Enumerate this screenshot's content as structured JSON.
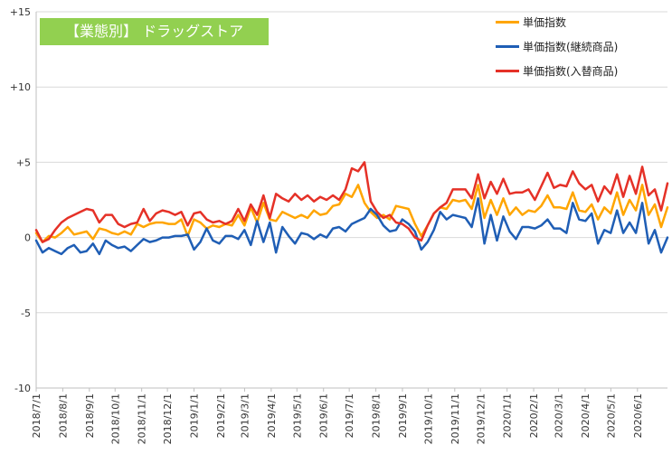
{
  "chart_data": {
    "type": "line",
    "title": "【業態別】 ドラッグストア",
    "ylim": [
      -10,
      15
    ],
    "yticks": [
      "-10",
      "-5",
      "0",
      "+5",
      "+10",
      "+15"
    ],
    "x_labels": [
      "2018/7/1",
      "2018/8/1",
      "2018/9/1",
      "2018/10/1",
      "2018/11/1",
      "2018/12/1",
      "2019/1/1",
      "2019/2/1",
      "2019/3/1",
      "2019/4/1",
      "2019/5/1",
      "2019/6/1",
      "2019/7/1",
      "2019/8/1",
      "2019/9/1",
      "2019/10/1",
      "2019/11/1",
      "2019/12/1",
      "2020/1/1",
      "2020/2/1",
      "2020/3/1",
      "2020/4/1",
      "2020/5/1",
      "2020/6/1"
    ],
    "x_start": "2018/7/1",
    "x_end": "2020/7/6",
    "grid": "horizontal",
    "legend_position": "top-right",
    "series": [
      {
        "name": "単価指数",
        "color": "#ffa500",
        "values": [
          0.3,
          -0.3,
          0.1,
          0.0,
          0.3,
          0.7,
          0.2,
          0.3,
          0.4,
          -0.1,
          0.6,
          0.5,
          0.3,
          0.2,
          0.4,
          0.2,
          0.9,
          0.7,
          0.9,
          1.0,
          1.0,
          0.9,
          0.9,
          1.2,
          0.1,
          1.2,
          1.0,
          0.6,
          0.8,
          0.7,
          0.9,
          0.8,
          1.5,
          0.8,
          2.0,
          1.0,
          2.3,
          1.2,
          1.1,
          1.7,
          1.5,
          1.3,
          1.5,
          1.3,
          1.8,
          1.5,
          1.6,
          2.1,
          2.2,
          2.9,
          2.7,
          3.5,
          2.3,
          1.7,
          1.3,
          1.5,
          1.2,
          2.1,
          2.0,
          1.9,
          0.9,
          0.1,
          0.8,
          1.6,
          2.0,
          1.9,
          2.5,
          2.4,
          2.5,
          1.9,
          3.5,
          1.3,
          2.5,
          1.5,
          2.6,
          1.5,
          2.0,
          1.5,
          1.8,
          1.7,
          2.1,
          2.8,
          2.0,
          2.0,
          1.9,
          3.0,
          1.8,
          1.7,
          2.2,
          1.2,
          2.0,
          1.6,
          3.0,
          1.5,
          2.5,
          1.8,
          3.5,
          1.5,
          2.2,
          0.7,
          2.0
        ]
      },
      {
        "name": "単価指数(継続商品)",
        "color": "#1f5eb5",
        "values": [
          -0.2,
          -1.0,
          -0.7,
          -0.9,
          -1.1,
          -0.7,
          -0.5,
          -1.0,
          -0.9,
          -0.4,
          -1.1,
          -0.2,
          -0.5,
          -0.7,
          -0.6,
          -0.9,
          -0.5,
          -0.1,
          -0.3,
          -0.2,
          0.0,
          0.0,
          0.1,
          0.1,
          0.2,
          -0.8,
          -0.3,
          0.6,
          -0.2,
          -0.4,
          0.1,
          0.1,
          -0.1,
          0.5,
          -0.5,
          1.1,
          -0.3,
          1.0,
          -1.0,
          0.7,
          0.1,
          -0.4,
          0.3,
          0.2,
          -0.1,
          0.2,
          0.0,
          0.6,
          0.7,
          0.4,
          0.9,
          1.1,
          1.3,
          1.9,
          1.5,
          0.8,
          0.4,
          0.5,
          1.2,
          0.9,
          0.4,
          -0.8,
          -0.3,
          0.5,
          1.7,
          1.2,
          1.5,
          1.4,
          1.3,
          0.7,
          2.6,
          -0.4,
          1.5,
          -0.2,
          1.4,
          0.4,
          -0.1,
          0.7,
          0.7,
          0.6,
          0.8,
          1.2,
          0.6,
          0.6,
          0.3,
          2.3,
          1.2,
          1.1,
          1.6,
          -0.4,
          0.5,
          0.3,
          1.8,
          0.3,
          1.0,
          0.3,
          2.3,
          -0.4,
          0.5,
          -1.0,
          0.0
        ]
      },
      {
        "name": "単価指数(入替商品)",
        "color": "#e53127",
        "values": [
          0.5,
          -0.3,
          -0.1,
          0.5,
          1.0,
          1.3,
          1.5,
          1.7,
          1.9,
          1.8,
          1.0,
          1.5,
          1.5,
          0.9,
          0.7,
          0.9,
          1.0,
          1.9,
          1.1,
          1.6,
          1.8,
          1.7,
          1.5,
          1.7,
          0.8,
          1.6,
          1.7,
          1.2,
          1.0,
          1.1,
          0.9,
          1.1,
          1.9,
          1.1,
          2.2,
          1.5,
          2.8,
          1.3,
          2.9,
          2.6,
          2.4,
          2.9,
          2.5,
          2.8,
          2.4,
          2.7,
          2.5,
          2.8,
          2.5,
          3.2,
          4.6,
          4.4,
          5.0,
          2.4,
          1.7,
          1.3,
          1.5,
          1.0,
          0.9,
          0.6,
          0.0,
          -0.2,
          0.8,
          1.6,
          2.0,
          2.3,
          3.2,
          3.2,
          3.2,
          2.6,
          4.2,
          2.6,
          3.7,
          2.9,
          3.9,
          2.9,
          3.0,
          3.0,
          3.2,
          2.5,
          3.4,
          4.3,
          3.3,
          3.5,
          3.4,
          4.4,
          3.6,
          3.2,
          3.5,
          2.4,
          3.4,
          2.9,
          4.2,
          2.7,
          4.1,
          2.9,
          4.7,
          2.8,
          3.2,
          1.8,
          3.6
        ]
      }
    ]
  }
}
